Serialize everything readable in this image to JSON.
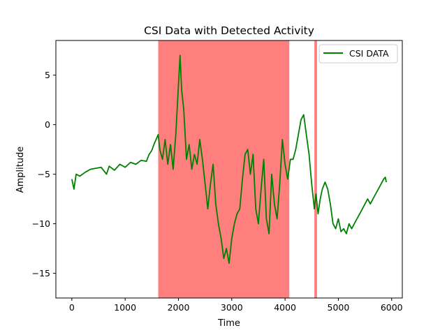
{
  "chart_data": {
    "type": "line",
    "title": "CSI Data with Detected Activity",
    "xlabel": "Time",
    "ylabel": "Amplitude",
    "xlim": [
      -300,
      6200
    ],
    "ylim": [
      -17.5,
      8.5
    ],
    "xticks": [
      0,
      1000,
      2000,
      3000,
      4000,
      5000,
      6000
    ],
    "yticks": [
      -15,
      -10,
      -5,
      0,
      5
    ],
    "grid": false,
    "legend_position": "upper right",
    "activity_color": "#ff0000",
    "activity_regions": [
      [
        1620,
        4080
      ],
      [
        4550,
        4600
      ]
    ],
    "series": [
      {
        "name": "CSI DATA",
        "color": "#008000",
        "x": [
          0,
          40,
          80,
          150,
          250,
          350,
          450,
          550,
          650,
          700,
          800,
          900,
          1000,
          1100,
          1200,
          1300,
          1400,
          1450,
          1500,
          1540,
          1580,
          1620,
          1650,
          1700,
          1750,
          1800,
          1850,
          1900,
          1950,
          2000,
          2030,
          2060,
          2100,
          2150,
          2200,
          2250,
          2300,
          2350,
          2400,
          2450,
          2500,
          2550,
          2600,
          2650,
          2700,
          2750,
          2800,
          2850,
          2900,
          2950,
          3000,
          3050,
          3100,
          3150,
          3200,
          3250,
          3300,
          3350,
          3400,
          3450,
          3500,
          3550,
          3600,
          3650,
          3700,
          3750,
          3800,
          3850,
          3900,
          3950,
          4000,
          4050,
          4100,
          4150,
          4200,
          4250,
          4300,
          4350,
          4400,
          4450,
          4500,
          4550,
          4580,
          4620,
          4660,
          4700,
          4750,
          4800,
          4850,
          4900,
          4950,
          5000,
          5050,
          5100,
          5150,
          5200,
          5250,
          5300,
          5350,
          5400,
          5450,
          5500,
          5550,
          5600,
          5650,
          5700,
          5750,
          5800,
          5850,
          5880,
          5900
        ],
        "y": [
          -5.5,
          -6.5,
          -5.0,
          -5.2,
          -4.8,
          -4.5,
          -4.4,
          -4.3,
          -5.0,
          -4.2,
          -4.6,
          -4.0,
          -4.3,
          -3.8,
          -4.0,
          -3.6,
          -3.7,
          -3.0,
          -2.6,
          -2.0,
          -1.5,
          -1.0,
          -2.5,
          -3.5,
          -1.5,
          -4.0,
          -2.0,
          -4.5,
          -1.0,
          4.0,
          7.0,
          3.5,
          1.5,
          -3.5,
          -2.0,
          -4.5,
          -3.0,
          -4.0,
          -1.5,
          -3.5,
          -6.0,
          -8.5,
          -6.0,
          -4.0,
          -8.0,
          -10.0,
          -11.5,
          -13.5,
          -12.5,
          -14.0,
          -11.5,
          -10.0,
          -9.0,
          -8.5,
          -5.5,
          -3.0,
          -2.5,
          -5.0,
          -3.0,
          -8.5,
          -10.0,
          -6.5,
          -3.5,
          -9.5,
          -11.0,
          -5.0,
          -8.0,
          -9.5,
          -6.0,
          -1.5,
          -4.0,
          -5.5,
          -3.5,
          -3.5,
          -2.5,
          -1.0,
          0.5,
          1.0,
          -1.0,
          -3.0,
          -6.0,
          -8.5,
          -7.0,
          -9.0,
          -7.5,
          -6.5,
          -5.8,
          -6.5,
          -8.0,
          -10.0,
          -10.5,
          -9.5,
          -10.8,
          -10.5,
          -11.0,
          -10.0,
          -10.5,
          -10.0,
          -9.5,
          -9.0,
          -8.5,
          -8.0,
          -7.5,
          -8.0,
          -7.5,
          -7.0,
          -6.5,
          -6.0,
          -5.5,
          -5.3,
          -5.8
        ]
      }
    ]
  }
}
